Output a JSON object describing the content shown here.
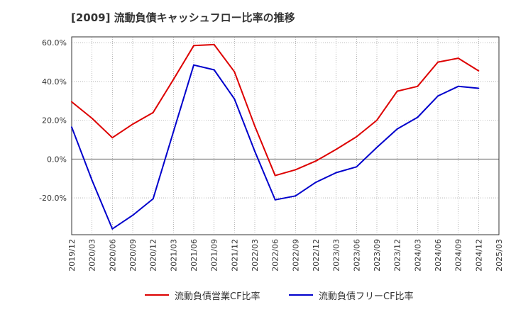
{
  "title": "[2009]  流動負債キャッシュフロー比率の推移",
  "colors": {
    "operating": "#dd0000",
    "free": "#0000cc",
    "grid": "#888888",
    "axis": "#333333"
  },
  "chart_data": {
    "type": "line",
    "title": "[2009]  流動負債キャッシュフロー比率の推移",
    "xlabel": "",
    "ylabel": "",
    "ylim": [
      -39,
      63
    ],
    "yticks": [
      60,
      40,
      20,
      0,
      -20
    ],
    "ytick_labels": [
      "60.0%",
      "40.0%",
      "20.0%",
      "0.0%",
      "-20.0%"
    ],
    "x": [
      "2019/12",
      "2020/03",
      "2020/06",
      "2020/09",
      "2020/12",
      "2021/03",
      "2021/06",
      "2021/09",
      "2021/12",
      "2022/03",
      "2022/06",
      "2022/09",
      "2022/12",
      "2023/03",
      "2023/06",
      "2023/09",
      "2023/12",
      "2024/03",
      "2024/06",
      "2024/09",
      "2024/12",
      "2025/03"
    ],
    "grid": true,
    "legend": "bottom",
    "series": [
      {
        "name": "流動負債営業CF比率",
        "color": "#dd0000",
        "values": [
          29.5,
          21,
          11,
          18,
          24,
          41,
          58.5,
          59,
          45,
          17,
          -8.5,
          -5.5,
          -1,
          5,
          11.5,
          20,
          35,
          37.5,
          50,
          52,
          45.5,
          null
        ]
      },
      {
        "name": "流動負債フリーCF比率",
        "color": "#0000cc",
        "values": [
          16.5,
          -11,
          -36,
          -29,
          -20.5,
          14,
          48.5,
          46,
          31,
          4,
          -21,
          -19,
          -12,
          -7,
          -4,
          6,
          15.5,
          21.5,
          32.5,
          37.5,
          36.5,
          null
        ]
      }
    ]
  }
}
